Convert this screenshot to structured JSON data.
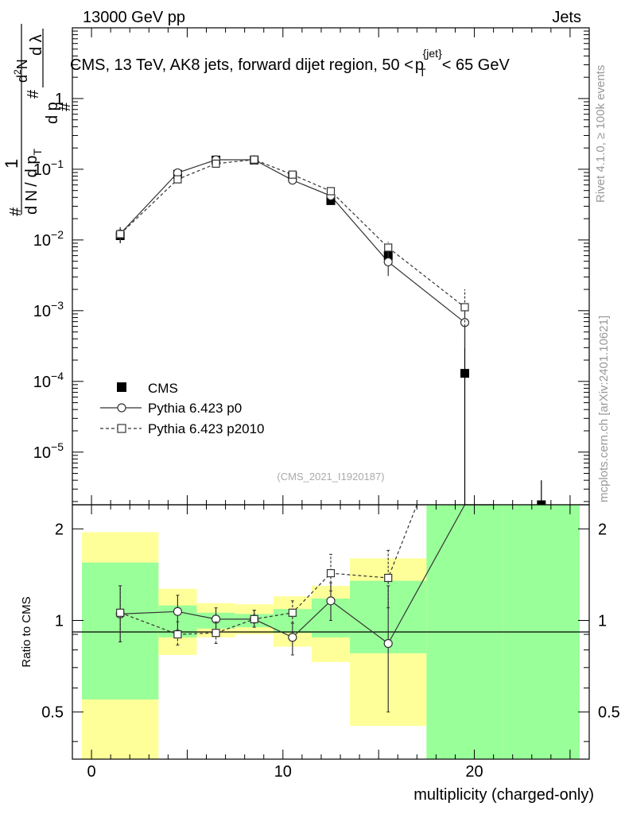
{
  "header": {
    "left": "13000 GeV pp",
    "right": "Jets"
  },
  "title": {
    "main": "CMS, 13 TeV, AK8 jets, forward dijet region, 50 <",
    "p": "p",
    "sub": "T",
    "sup": "{jet}",
    "end": "< 65 GeV"
  },
  "side_labels": {
    "rivet": "Rivet 4.1.0, ≥ 100k events",
    "mcplots": "mcplots.cern.ch [arXiv:2401.10621]"
  },
  "watermark": "(CMS_2021_I1920187)",
  "ylabel_main": {
    "hash1": "#",
    "one": "1",
    "num_main": "d",
    "num_sup": "2",
    "num_tail": "N",
    "den_a": "d N",
    "den_sep": "/",
    "den_b": "d p",
    "den_sub": "T",
    "den_c": "d p",
    "den_d": "d λ",
    "hash2": "#",
    "hash3": "#"
  },
  "ylabel_ratio": "Ratio to CMS",
  "xlabel": "multiplicity (charged-only)",
  "legend": [
    {
      "label": "CMS",
      "marker": "filled-square"
    },
    {
      "label": "Pythia 6.423 p0",
      "marker": "open-circle"
    },
    {
      "label": "Pythia 6.423 p2010",
      "marker": "open-square"
    }
  ],
  "colors": {
    "data": "#000000",
    "mc": "#333333",
    "band_green": "#99ff99",
    "band_yellow": "#ffff99"
  },
  "chart_data": [
    {
      "type": "scatter",
      "panel": "main",
      "ylog": true,
      "xlim": [
        -1,
        26
      ],
      "ylim": [
        1.8e-06,
        10
      ],
      "yticks": [
        {
          "v": 1,
          "label": "1"
        },
        {
          "v": 0.1,
          "base": "10",
          "exp": "−1"
        },
        {
          "v": 0.01,
          "base": "10",
          "exp": "−2"
        },
        {
          "v": 0.001,
          "base": "10",
          "exp": "−3"
        },
        {
          "v": 0.0001,
          "base": "10",
          "exp": "−4"
        },
        {
          "v": 1e-05,
          "base": "10",
          "exp": "−5"
        }
      ],
      "series": [
        {
          "name": "CMS",
          "x": [
            1.5,
            4.5,
            6.5,
            8.5,
            10.5,
            12.5,
            15.5,
            19.5,
            23.5
          ],
          "y": [
            0.0115,
            0.085,
            0.135,
            0.135,
            0.08,
            0.036,
            0.006,
            0.00013,
            1.7e-06
          ],
          "ylow": [
            0.009,
            0.078,
            0.126,
            0.127,
            0.072,
            0.032,
            0.0047,
            1e-07,
            1e-07
          ],
          "yhigh": [
            0.014,
            0.093,
            0.144,
            0.143,
            0.088,
            0.04,
            0.0073,
            0.0006,
            4e-06
          ]
        },
        {
          "name": "Pythia 6.423 p0",
          "x": [
            1.5,
            4.5,
            6.5,
            8.5,
            10.5,
            12.5,
            15.5,
            19.5
          ],
          "y": [
            0.0122,
            0.089,
            0.136,
            0.136,
            0.07,
            0.042,
            0.0049,
            0.00068
          ],
          "ylow": [
            0.0098,
            0.08,
            0.125,
            0.128,
            0.061,
            0.036,
            0.0031,
            0.0003
          ],
          "yhigh": [
            0.0152,
            0.098,
            0.147,
            0.144,
            0.079,
            0.048,
            0.0068,
            0.0011
          ]
        },
        {
          "name": "Pythia 6.423 p2010",
          "x": [
            1.5,
            4.5,
            6.5,
            8.5,
            10.5,
            12.5,
            15.5,
            19.5
          ],
          "y": [
            0.0121,
            0.072,
            0.12,
            0.137,
            0.084,
            0.049,
            0.0078,
            0.00112
          ],
          "ylow": [
            0.0098,
            0.065,
            0.112,
            0.128,
            0.076,
            0.044,
            0.0062,
            0.0006
          ],
          "yhigh": [
            0.0146,
            0.079,
            0.128,
            0.146,
            0.092,
            0.054,
            0.0094,
            0.002
          ]
        }
      ]
    },
    {
      "type": "scatter",
      "panel": "ratio",
      "ylog": true,
      "xlim": [
        -1,
        26
      ],
      "ylim": [
        0.35,
        2.4
      ],
      "xticks": [
        0,
        10,
        20
      ],
      "yticks": [
        0.5,
        1,
        2
      ],
      "bands": [
        {
          "x0": -0.5,
          "x1": 3.5,
          "green": [
            0.55,
            1.55
          ],
          "yellow": [
            0.35,
            1.95
          ]
        },
        {
          "x0": 3.5,
          "x1": 5.5,
          "green": [
            0.88,
            1.12
          ],
          "yellow": [
            0.77,
            1.27
          ]
        },
        {
          "x0": 5.5,
          "x1": 7.5,
          "green": [
            0.94,
            1.06
          ],
          "yellow": [
            0.88,
            1.14
          ]
        },
        {
          "x0": 7.5,
          "x1": 9.5,
          "green": [
            0.95,
            1.05
          ],
          "yellow": [
            0.9,
            1.13
          ]
        },
        {
          "x0": 9.5,
          "x1": 11.5,
          "green": [
            0.91,
            1.09
          ],
          "yellow": [
            0.82,
            1.2
          ]
        },
        {
          "x0": 11.5,
          "x1": 13.5,
          "green": [
            0.88,
            1.18
          ],
          "yellow": [
            0.73,
            1.3
          ]
        },
        {
          "x0": 13.5,
          "x1": 17.5,
          "green": [
            0.78,
            1.35
          ],
          "yellow": [
            0.45,
            1.6
          ]
        },
        {
          "x0": 17.5,
          "x1": 21.5,
          "green": [
            0.35,
            2.4
          ],
          "yellow": [
            0.35,
            2.4
          ]
        },
        {
          "x0": 21.5,
          "x1": 25.5,
          "green": [
            0.35,
            2.4
          ],
          "yellow": [
            0.35,
            2.4
          ]
        }
      ],
      "series": [
        {
          "name": "Pythia 6.423 p0",
          "x": [
            1.5,
            4.5,
            6.5,
            8.5,
            10.5,
            12.5,
            15.5,
            19.5,
            21.0
          ],
          "y": [
            1.05,
            1.07,
            1.01,
            1.01,
            0.88,
            1.16,
            0.84,
            2.4,
            2.4
          ],
          "ylow": [
            0.85,
            0.93,
            0.93,
            0.95,
            0.77,
            1.0,
            0.5,
            2.4,
            2.4
          ],
          "yhigh": [
            1.3,
            1.21,
            1.1,
            1.08,
            0.98,
            1.33,
            1.3,
            2.4,
            2.4
          ]
        },
        {
          "name": "Pythia 6.423 p2010",
          "x": [
            1.5,
            4.5,
            6.5,
            8.5,
            10.5,
            12.5,
            15.5,
            17.0
          ],
          "y": [
            1.06,
            0.9,
            0.91,
            1.01,
            1.06,
            1.43,
            1.38,
            2.4
          ],
          "ylow": [
            0.85,
            0.83,
            0.84,
            0.95,
            0.98,
            1.25,
            1.1,
            2.4
          ],
          "yhigh": [
            1.3,
            0.99,
            0.99,
            1.08,
            1.16,
            1.65,
            1.7,
            2.4
          ]
        }
      ]
    }
  ]
}
